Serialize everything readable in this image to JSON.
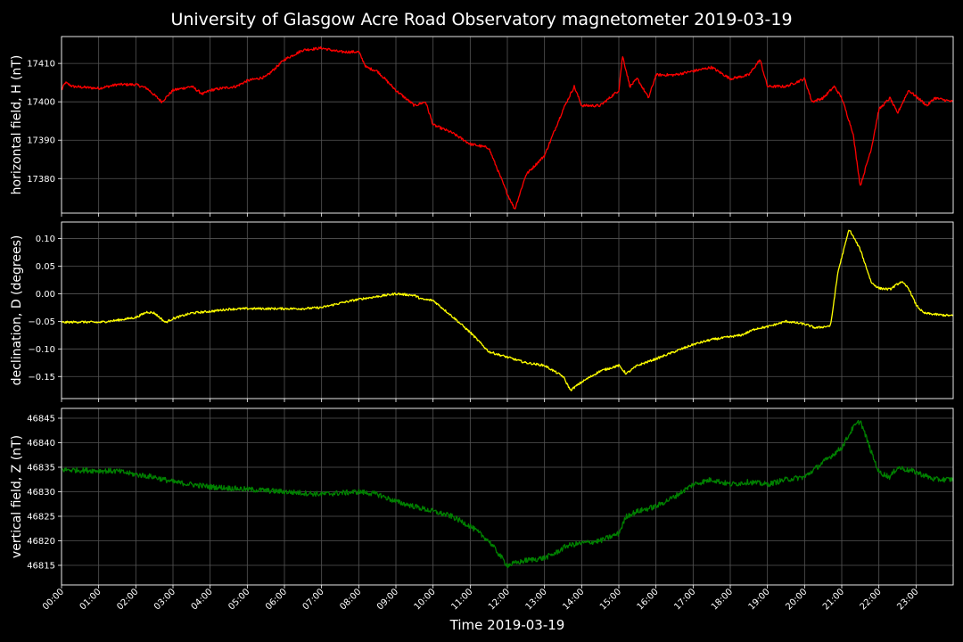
{
  "chart_data": {
    "type": "line",
    "title": "University of Glasgow Acre Road Observatory magnetometer 2019-03-19",
    "xlabel": "Time 2019-03-19",
    "x_ticks": [
      "00:00",
      "01:00",
      "02:00",
      "03:00",
      "04:00",
      "05:00",
      "06:00",
      "07:00",
      "08:00",
      "09:00",
      "10:00",
      "11:00",
      "12:00",
      "13:00",
      "14:00",
      "15:00",
      "16:00",
      "17:00",
      "18:00",
      "19:00",
      "20:00",
      "21:00",
      "22:00",
      "23:00"
    ],
    "xlim_hours": [
      0,
      24
    ],
    "grid": true,
    "panels": [
      {
        "ylabel": "horizontal field, H (nT)",
        "color": "#ff0000",
        "ylim": [
          17371,
          17417
        ],
        "yticks": [
          17380,
          17390,
          17400,
          17410
        ],
        "tick_labels": [
          "17380",
          "17390",
          "17400",
          "17410"
        ],
        "noise": 0.35,
        "points": [
          [
            0,
            17403
          ],
          [
            0.1,
            17405
          ],
          [
            0.3,
            17404
          ],
          [
            1,
            17403.5
          ],
          [
            1.5,
            17404.5
          ],
          [
            2,
            17404.5
          ],
          [
            2.3,
            17403.5
          ],
          [
            2.7,
            17400
          ],
          [
            3,
            17403
          ],
          [
            3.5,
            17404
          ],
          [
            3.8,
            17402
          ],
          [
            4,
            17403
          ],
          [
            4.3,
            17403.5
          ],
          [
            4.7,
            17404
          ],
          [
            5,
            17405.5
          ],
          [
            5.5,
            17406.5
          ],
          [
            6,
            17411
          ],
          [
            6.5,
            17413.5
          ],
          [
            7,
            17414
          ],
          [
            7.5,
            17413
          ],
          [
            8,
            17413
          ],
          [
            8.2,
            17409
          ],
          [
            8.5,
            17408
          ],
          [
            9,
            17403
          ],
          [
            9.5,
            17399
          ],
          [
            9.8,
            17400
          ],
          [
            10,
            17394
          ],
          [
            10.5,
            17392
          ],
          [
            11,
            17389
          ],
          [
            11.5,
            17388
          ],
          [
            12,
            17376
          ],
          [
            12.2,
            17372
          ],
          [
            12.5,
            17381
          ],
          [
            12.8,
            17384
          ],
          [
            13,
            17386
          ],
          [
            13.5,
            17398
          ],
          [
            13.8,
            17404
          ],
          [
            14,
            17399
          ],
          [
            14.5,
            17399
          ],
          [
            15,
            17403
          ],
          [
            15.1,
            17412
          ],
          [
            15.3,
            17404
          ],
          [
            15.5,
            17406
          ],
          [
            15.8,
            17401
          ],
          [
            16,
            17407
          ],
          [
            16.5,
            17407
          ],
          [
            17,
            17408
          ],
          [
            17.5,
            17409
          ],
          [
            18,
            17406
          ],
          [
            18.5,
            17407
          ],
          [
            18.8,
            17411
          ],
          [
            19,
            17404
          ],
          [
            19.5,
            17404
          ],
          [
            20,
            17406
          ],
          [
            20.2,
            17400
          ],
          [
            20.5,
            17401
          ],
          [
            20.8,
            17404
          ],
          [
            21,
            17401
          ],
          [
            21.3,
            17392
          ],
          [
            21.5,
            17378
          ],
          [
            21.8,
            17388
          ],
          [
            22,
            17398
          ],
          [
            22.3,
            17401
          ],
          [
            22.5,
            17397
          ],
          [
            22.8,
            17403
          ],
          [
            23.3,
            17399
          ],
          [
            23.5,
            17401
          ],
          [
            24,
            17400
          ]
        ]
      },
      {
        "ylabel": "declination, D (degrees)",
        "color": "#ffff00",
        "ylim": [
          -0.19,
          0.13
        ],
        "yticks": [
          -0.15,
          -0.1,
          -0.05,
          0.0,
          0.05,
          0.1
        ],
        "tick_labels": [
          "−0.15",
          "−0.10",
          "−0.05",
          "0.00",
          "0.05",
          "0.10"
        ],
        "noise": 0.002,
        "points": [
          [
            0,
            -0.052
          ],
          [
            0.5,
            -0.051
          ],
          [
            1,
            -0.052
          ],
          [
            1.5,
            -0.048
          ],
          [
            2,
            -0.043
          ],
          [
            2.3,
            -0.033
          ],
          [
            2.5,
            -0.035
          ],
          [
            2.8,
            -0.052
          ],
          [
            3,
            -0.045
          ],
          [
            3.5,
            -0.035
          ],
          [
            4,
            -0.032
          ],
          [
            4.5,
            -0.028
          ],
          [
            5,
            -0.027
          ],
          [
            5.5,
            -0.027
          ],
          [
            6,
            -0.027
          ],
          [
            6.5,
            -0.027
          ],
          [
            7,
            -0.025
          ],
          [
            7.5,
            -0.017
          ],
          [
            8,
            -0.01
          ],
          [
            8.5,
            -0.005
          ],
          [
            9,
            0.0
          ],
          [
            9.5,
            -0.003
          ],
          [
            9.7,
            -0.01
          ],
          [
            10,
            -0.012
          ],
          [
            10.5,
            -0.04
          ],
          [
            11,
            -0.07
          ],
          [
            11.5,
            -0.105
          ],
          [
            12,
            -0.115
          ],
          [
            12.5,
            -0.125
          ],
          [
            13,
            -0.13
          ],
          [
            13.5,
            -0.15
          ],
          [
            13.7,
            -0.175
          ],
          [
            14,
            -0.16
          ],
          [
            14.5,
            -0.14
          ],
          [
            15,
            -0.13
          ],
          [
            15.2,
            -0.145
          ],
          [
            15.5,
            -0.13
          ],
          [
            16,
            -0.118
          ],
          [
            16.5,
            -0.105
          ],
          [
            17,
            -0.092
          ],
          [
            17.5,
            -0.083
          ],
          [
            18,
            -0.078
          ],
          [
            18.3,
            -0.075
          ],
          [
            18.7,
            -0.063
          ],
          [
            19,
            -0.06
          ],
          [
            19.5,
            -0.05
          ],
          [
            20,
            -0.055
          ],
          [
            20.3,
            -0.062
          ],
          [
            20.7,
            -0.058
          ],
          [
            20.9,
            0.04
          ],
          [
            21.2,
            0.117
          ],
          [
            21.5,
            0.08
          ],
          [
            21.8,
            0.02
          ],
          [
            22,
            0.01
          ],
          [
            22.3,
            0.008
          ],
          [
            22.6,
            0.022
          ],
          [
            22.8,
            0.01
          ],
          [
            23,
            -0.02
          ],
          [
            23.2,
            -0.035
          ],
          [
            23.6,
            -0.038
          ],
          [
            24,
            -0.04
          ]
        ]
      },
      {
        "ylabel": "vertical field, Z (nT)",
        "color": "#008000",
        "ylim": [
          46811,
          46847
        ],
        "yticks": [
          46815,
          46820,
          46825,
          46830,
          46835,
          46840,
          46845
        ],
        "tick_labels": [
          "46815",
          "46820",
          "46825",
          "46830",
          "46835",
          "46840",
          "46845"
        ],
        "noise": 0.55,
        "points": [
          [
            0,
            46834.5
          ],
          [
            1,
            46834.3
          ],
          [
            1.5,
            46834.2
          ],
          [
            2,
            46833.5
          ],
          [
            2.5,
            46833
          ],
          [
            3,
            46832
          ],
          [
            3.5,
            46831.5
          ],
          [
            4,
            46831
          ],
          [
            5,
            46830.5
          ],
          [
            6,
            46830
          ],
          [
            7,
            46829.5
          ],
          [
            8,
            46830
          ],
          [
            8.5,
            46829.5
          ],
          [
            9,
            46828
          ],
          [
            9.5,
            46827
          ],
          [
            10,
            46826
          ],
          [
            10.5,
            46825
          ],
          [
            11,
            46823
          ],
          [
            11.5,
            46820
          ],
          [
            12,
            46815
          ],
          [
            12.5,
            46816
          ],
          [
            13,
            46816.5
          ],
          [
            13.3,
            46817.5
          ],
          [
            13.6,
            46819
          ],
          [
            14,
            46819.5
          ],
          [
            14.5,
            46820
          ],
          [
            15,
            46821.5
          ],
          [
            15.2,
            46825
          ],
          [
            15.5,
            46826
          ],
          [
            16,
            46827
          ],
          [
            16.5,
            46829
          ],
          [
            17,
            46831.5
          ],
          [
            17.5,
            46832.5
          ],
          [
            18,
            46831.5
          ],
          [
            18.5,
            46832
          ],
          [
            19,
            46831.5
          ],
          [
            19.5,
            46832.5
          ],
          [
            20,
            46833
          ],
          [
            20.5,
            46836
          ],
          [
            21,
            46839
          ],
          [
            21.3,
            46843
          ],
          [
            21.5,
            46844.5
          ],
          [
            21.8,
            46838
          ],
          [
            22,
            46834
          ],
          [
            22.3,
            46833
          ],
          [
            22.5,
            46835
          ],
          [
            23,
            46834
          ],
          [
            23.5,
            46832.5
          ],
          [
            24,
            46832.5
          ]
        ]
      }
    ]
  }
}
